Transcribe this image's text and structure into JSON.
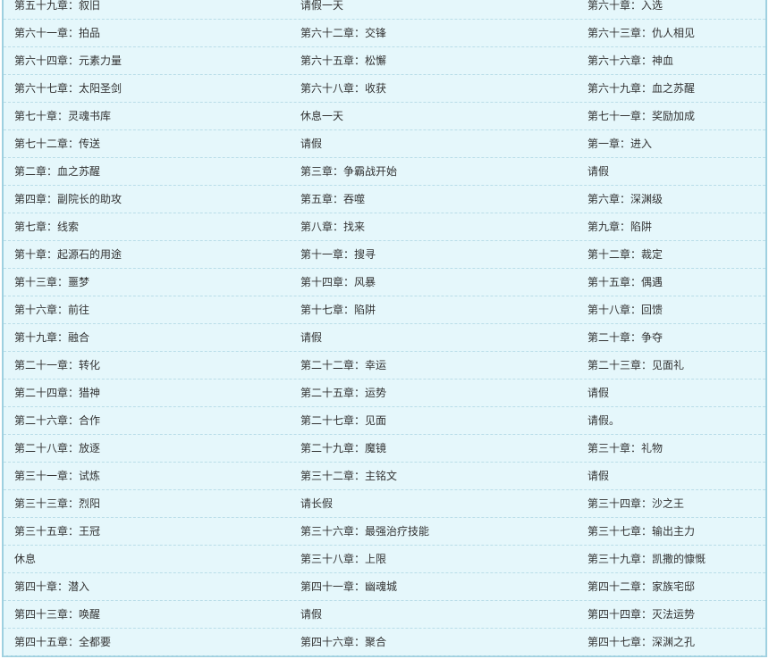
{
  "chapter_list": {
    "rows": [
      [
        "第五十九章：叙旧",
        "请假一天",
        "第六十章：入选"
      ],
      [
        "第六十一章：拍品",
        "第六十二章：交锋",
        "第六十三章：仇人相见"
      ],
      [
        "第六十四章：元素力量",
        "第六十五章：松懈",
        "第六十六章：神血"
      ],
      [
        "第六十七章：太阳圣剑",
        "第六十八章：收获",
        "第六十九章：血之苏醒"
      ],
      [
        "第七十章：灵魂书库",
        "休息一天",
        "第七十一章：奖励加成"
      ],
      [
        "第七十二章：传送",
        "请假",
        "第一章：进入"
      ],
      [
        "第二章：血之苏醒",
        "第三章：争霸战开始",
        "请假"
      ],
      [
        "第四章：副院长的助攻",
        "第五章：吞噬",
        "第六章：深渊级"
      ],
      [
        "第七章：线索",
        "第八章：找来",
        "第九章：陷阱"
      ],
      [
        "第十章：起源石的用途",
        "第十一章：搜寻",
        "第十二章：裁定"
      ],
      [
        "第十三章：噩梦",
        "第十四章：风暴",
        "第十五章：偶遇"
      ],
      [
        "第十六章：前往",
        "第十七章：陷阱",
        "第十八章：回馈"
      ],
      [
        "第十九章：融合",
        "请假",
        "第二十章：争夺"
      ],
      [
        "第二十一章：转化",
        "第二十二章：幸运",
        "第二十三章：见面礼"
      ],
      [
        "第二十四章：猎神",
        "第二十五章：运势",
        "请假"
      ],
      [
        "第二十六章：合作",
        "第二十七章：见面",
        "请假。"
      ],
      [
        "第二十八章：放逐",
        "第二十九章：魔镜",
        "第三十章：礼物"
      ],
      [
        "第三十一章：试炼",
        "第三十二章：主铭文",
        "请假"
      ],
      [
        "第三十三章：烈阳",
        "请长假",
        "第三十四章：沙之王"
      ],
      [
        "第三十五章：王冠",
        "第三十六章：最强治疗技能",
        "第三十七章：输出主力"
      ],
      [
        "休息",
        "第三十八章：上限",
        "第三十九章：凯撒的慷慨"
      ],
      [
        "第四十章：潜入",
        "第四十一章：幽魂城",
        "第四十二章：家族宅邸"
      ],
      [
        "第四十三章：唤醒",
        "请假",
        "第四十四章：灭法运势"
      ],
      [
        "第四十五章：全都要",
        "第四十六章：聚合",
        "第四十七章：深渊之孔"
      ]
    ]
  }
}
